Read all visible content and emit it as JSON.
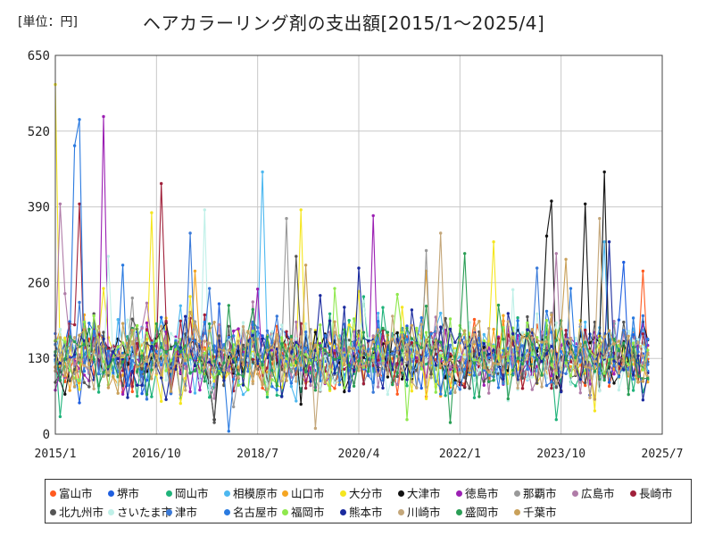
{
  "chart_data": {
    "type": "line",
    "title": "ヘアカラーリング剤の支出額[2015/1～2025/4]",
    "unit_label": "[単位：円]",
    "xlabel": "",
    "ylabel": "",
    "ylim": [
      0,
      650
    ],
    "y_ticks": [
      0,
      130,
      260,
      390,
      520,
      650
    ],
    "x_ticks": [
      "2015/1",
      "2016/10",
      "2018/7",
      "2020/4",
      "2022/1",
      "2023/10",
      "2025/7"
    ],
    "x_range": [
      "2015/1",
      "2025/7"
    ],
    "grid": true,
    "legend_position": "bottom",
    "note": "",
    "series": [
      {
        "name": "富山市",
        "color": "#ff5a1f",
        "base": 125,
        "spread": 45,
        "peaks": [
          [
            2,
            90
          ],
          [
            116,
            115
          ],
          [
            122,
            280
          ]
        ]
      },
      {
        "name": "堺市",
        "color": "#1f5fe0",
        "base": 130,
        "spread": 45,
        "peaks": [
          [
            84,
            110
          ],
          [
            118,
            295
          ]
        ]
      },
      {
        "name": "岡山市",
        "color": "#1fb37a",
        "base": 120,
        "spread": 45,
        "peaks": [
          [
            1,
            30
          ],
          [
            104,
            25
          ],
          [
            101,
            130
          ]
        ]
      },
      {
        "name": "相模原市",
        "color": "#4db8f0",
        "base": 135,
        "spread": 50,
        "peaks": [
          [
            43,
            450
          ],
          [
            114,
            330
          ]
        ]
      },
      {
        "name": "山口市",
        "color": "#f5a623",
        "base": 130,
        "spread": 45,
        "peaks": [
          [
            77,
            280
          ],
          [
            29,
            280
          ]
        ]
      },
      {
        "name": "大分市",
        "color": "#f5e61f",
        "base": 130,
        "spread": 50,
        "peaks": [
          [
            0,
            600
          ],
          [
            20,
            380
          ],
          [
            51,
            385
          ],
          [
            91,
            330
          ],
          [
            112,
            40
          ]
        ]
      },
      {
        "name": "大津市",
        "color": "#111111",
        "base": 130,
        "spread": 45,
        "peaks": [
          [
            103,
            400
          ],
          [
            114,
            450
          ],
          [
            110,
            395
          ],
          [
            102,
            340
          ],
          [
            33,
            25
          ]
        ]
      },
      {
        "name": "徳島市",
        "color": "#9b1fb3",
        "base": 130,
        "spread": 45,
        "peaks": [
          [
            10,
            545
          ],
          [
            66,
            375
          ]
        ]
      },
      {
        "name": "那覇市",
        "color": "#999999",
        "base": 130,
        "spread": 45,
        "peaks": [
          [
            48,
            370
          ],
          [
            77,
            315
          ]
        ]
      },
      {
        "name": "広島市",
        "color": "#b07ca8",
        "base": 130,
        "spread": 45,
        "peaks": [
          [
            1,
            395
          ],
          [
            104,
            310
          ]
        ]
      },
      {
        "name": "長崎市",
        "color": "#a0203a",
        "base": 130,
        "spread": 45,
        "peaks": [
          [
            22,
            430
          ],
          [
            5,
            395
          ]
        ]
      },
      {
        "name": "北九州市",
        "color": "#555555",
        "base": 130,
        "spread": 45,
        "peaks": [
          [
            50,
            305
          ],
          [
            33,
            20
          ]
        ]
      },
      {
        "name": "さいたま市",
        "color": "#bff0e8",
        "base": 130,
        "spread": 45,
        "peaks": [
          [
            31,
            385
          ],
          [
            11,
            305
          ]
        ]
      },
      {
        "name": "津市",
        "color": "#3a7ad9",
        "base": 130,
        "spread": 45,
        "peaks": [
          [
            28,
            345
          ],
          [
            100,
            285
          ]
        ]
      },
      {
        "name": "名古屋市",
        "color": "#2a7ae0",
        "base": 130,
        "spread": 45,
        "peaks": [
          [
            4,
            495
          ],
          [
            5,
            540
          ],
          [
            14,
            290
          ],
          [
            36,
            5
          ]
        ]
      },
      {
        "name": "福岡市",
        "color": "#8fe84d",
        "base": 130,
        "spread": 45,
        "peaks": [
          [
            73,
            25
          ],
          [
            58,
            250
          ]
        ]
      },
      {
        "name": "熊本市",
        "color": "#1a2a9e",
        "base": 130,
        "spread": 45,
        "peaks": [
          [
            63,
            285
          ],
          [
            115,
            330
          ]
        ]
      },
      {
        "name": "川崎市",
        "color": "#c4a77a",
        "base": 130,
        "spread": 45,
        "peaks": [
          [
            54,
            10
          ],
          [
            80,
            345
          ],
          [
            113,
            370
          ]
        ]
      },
      {
        "name": "盛岡市",
        "color": "#2a9e55",
        "base": 130,
        "spread": 45,
        "peaks": [
          [
            85,
            310
          ],
          [
            82,
            20
          ]
        ]
      },
      {
        "name": "千葉市",
        "color": "#c9a15a",
        "base": 130,
        "spread": 45,
        "peaks": [
          [
            52,
            290
          ],
          [
            106,
            300
          ]
        ]
      }
    ]
  }
}
